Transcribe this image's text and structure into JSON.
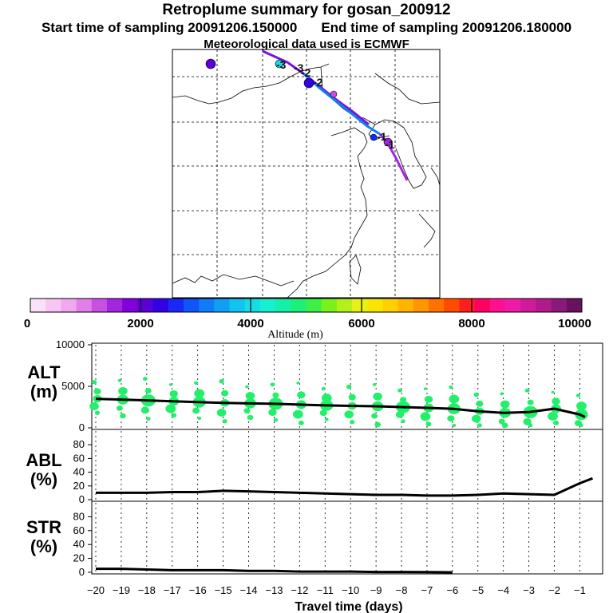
{
  "header": {
    "title": "Retroplume summary for gosan_200912",
    "start": "Start time of sampling 20091206.150000",
    "end": "End time of sampling 20091206.180000",
    "met": "Meteorological data used is ECMWF"
  },
  "colorbar": {
    "ticks": [
      "0",
      "2000",
      "4000",
      "6000",
      "8000",
      "10000"
    ],
    "label": "Altitude (m)",
    "colors": [
      "#fbe0f9",
      "#f7c6f4",
      "#f0a8ef",
      "#e27ee9",
      "#c94fe3",
      "#a424e0",
      "#8200dc",
      "#5a00d6",
      "#3300e6",
      "#1a28f5",
      "#0f55f7",
      "#0f7df7",
      "#0fa0f5",
      "#12c2f0",
      "#15dde6",
      "#17f0d0",
      "#15f0a8",
      "#1cf078",
      "#3cf045",
      "#7af01c",
      "#b4f01a",
      "#e6f01a",
      "#f9e600",
      "#ffcf00",
      "#ffb400",
      "#ff9600",
      "#ff7200",
      "#ff4a00",
      "#ff1e1e",
      "#ff0060",
      "#ff1090",
      "#f01aa8",
      "#d01a9a",
      "#b01a8a",
      "#8a1a7a",
      "#6a1060"
    ]
  },
  "map": {
    "trajectory_labels": [
      "-1",
      "-1",
      "-2",
      "-2",
      "-3",
      "-3"
    ]
  },
  "panels": {
    "alt": {
      "label": "ALT\n(m)"
    },
    "abl": {
      "label": "ABL\n(%)"
    },
    "str": {
      "label": "STR\n(%)"
    }
  },
  "colors": {
    "blob": "#22f06a",
    "line": "#000000"
  },
  "chart_data": [
    {
      "type": "line",
      "name": "ALT",
      "xlabel": "Travel time (days)",
      "ylabel": "ALT (m)",
      "ylim": [
        0,
        10000
      ],
      "yticks": [
        "0",
        "5000",
        "10000"
      ],
      "x": [
        -20,
        -19,
        -18,
        -17,
        -16,
        -15,
        -14,
        -13,
        -12,
        -11,
        -10,
        -9,
        -8,
        -7,
        -6,
        -5,
        -4,
        -3,
        -2,
        -1,
        -0.8
      ],
      "values": [
        3500,
        3400,
        3300,
        3200,
        3100,
        3000,
        2950,
        2900,
        2800,
        2700,
        2650,
        2600,
        2500,
        2400,
        2300,
        2000,
        1800,
        1900,
        2300,
        1600,
        1300
      ]
    },
    {
      "type": "line",
      "name": "ABL",
      "ylabel": "ABL (%)",
      "ylim": [
        0,
        100
      ],
      "yticks": [
        "0",
        "20",
        "40",
        "60",
        "80"
      ],
      "x": [
        -20,
        -19,
        -18,
        -17,
        -16,
        -15,
        -14,
        -13,
        -12,
        -11,
        -10,
        -9,
        -8,
        -7,
        -6,
        -5,
        -4,
        -3,
        -2,
        -1,
        -0.5
      ],
      "values": [
        10,
        10,
        10,
        11,
        11,
        13,
        12,
        11,
        10,
        9,
        8,
        7,
        7,
        6,
        6,
        7,
        9,
        8,
        7,
        24,
        31
      ]
    },
    {
      "type": "line",
      "name": "STR",
      "xlabel": "Travel time (days)",
      "ylabel": "STR (%)",
      "ylim": [
        0,
        100
      ],
      "yticks": [
        "0",
        "20",
        "40",
        "60",
        "80"
      ],
      "x": [
        -20,
        -19,
        -18,
        -17,
        -16,
        -15,
        -14,
        -13,
        -12,
        -11,
        -10,
        -9,
        -8,
        -7,
        -6
      ],
      "values": [
        5,
        5,
        4,
        3,
        3,
        3,
        2,
        2,
        1,
        1,
        1,
        0.5,
        0.5,
        0.3,
        0
      ],
      "xticks": [
        "−20",
        "−19",
        "−18",
        "−17",
        "−16",
        "−15",
        "−14",
        "−13",
        "−12",
        "−11",
        "−10",
        "−9",
        "−8",
        "−7",
        "−6",
        "−5",
        "−4",
        "−3",
        "−2",
        "−1"
      ]
    }
  ]
}
